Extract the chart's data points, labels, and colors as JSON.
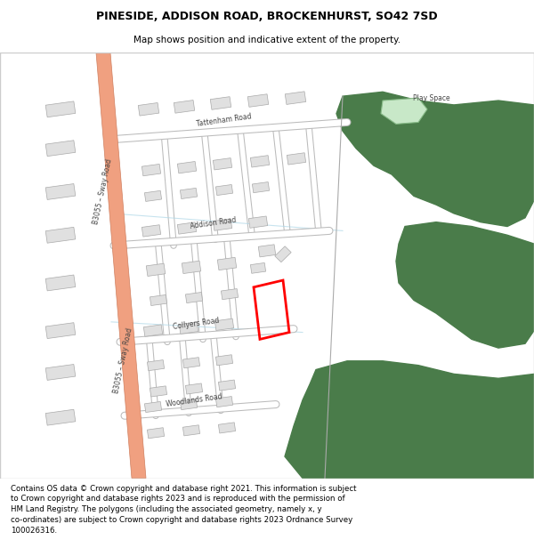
{
  "title": "PINESIDE, ADDISON ROAD, BROCKENHURST, SO42 7SD",
  "subtitle": "Map shows position and indicative extent of the property.",
  "footer": "Contains OS data © Crown copyright and database right 2021. This information is subject to Crown copyright and database rights 2023 and is reproduced with the permission of HM Land Registry. The polygons (including the associated geometry, namely x, y co-ordinates) are subject to Crown copyright and database rights 2023 Ordnance Survey 100026316.",
  "bg_color": "#ffffff",
  "road_main_color": "#f0a080",
  "road_main_edge": "#d08060",
  "building_color": "#e0e0e0",
  "building_edge": "#aaaaaa",
  "green_dark": "#4a7c4a",
  "green_light": "#b8d8b8",
  "play_color": "#c8e8c8",
  "blue_color": "#b0d8e8",
  "red_color": "#ff0000",
  "text_color": "#444444",
  "title_fontsize": 9,
  "subtitle_fontsize": 7.5,
  "footer_fontsize": 6.2,
  "label_fontsize": 5.5,
  "road_label_fontsize": 5.5
}
